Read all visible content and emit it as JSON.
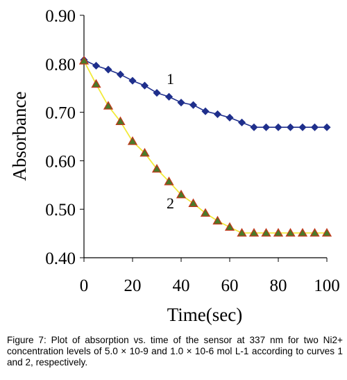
{
  "chart_data": {
    "type": "line",
    "title": "",
    "xlabel": "Time(sec)",
    "ylabel": "Absorbance",
    "xlim": [
      0,
      100
    ],
    "ylim": [
      0.4,
      0.9
    ],
    "x_ticks": [
      "0",
      "20",
      "40",
      "60",
      "80",
      "100"
    ],
    "y_ticks": [
      "0.90",
      "0.80",
      "0.70",
      "0.60",
      "0.50",
      "0.40"
    ],
    "grid": false,
    "legend": "none",
    "series": [
      {
        "label": "1",
        "marker": "diamond",
        "color": "#1f2f8c",
        "x": [
          0,
          5,
          10,
          15,
          20,
          25,
          30,
          35,
          40,
          45,
          50,
          55,
          60,
          65,
          70,
          75,
          80,
          85,
          90,
          95,
          100
        ],
        "y": [
          0.808,
          0.796,
          0.788,
          0.778,
          0.765,
          0.755,
          0.74,
          0.732,
          0.72,
          0.715,
          0.702,
          0.696,
          0.689,
          0.679,
          0.669,
          0.669,
          0.669,
          0.669,
          0.669,
          0.669,
          0.669
        ]
      },
      {
        "label": "2",
        "marker": "triangle",
        "color": "#f2ea3a",
        "marker_fill": "#4a7a2a",
        "marker_edge": "#c0391b",
        "x": [
          0,
          5,
          10,
          15,
          20,
          25,
          30,
          35,
          40,
          45,
          50,
          55,
          60,
          65,
          70,
          75,
          80,
          85,
          90,
          95,
          100
        ],
        "y": [
          0.806,
          0.758,
          0.713,
          0.681,
          0.64,
          0.616,
          0.583,
          0.557,
          0.53,
          0.512,
          0.492,
          0.476,
          0.463,
          0.451,
          0.451,
          0.451,
          0.451,
          0.451,
          0.451,
          0.451,
          0.451
        ]
      }
    ],
    "annotations": [
      {
        "text": "1",
        "x": 34,
        "y": 0.758
      },
      {
        "text": "2",
        "x": 34,
        "y": 0.502
      }
    ]
  },
  "caption": "Figure 7: Plot of absorption vs. time of the sensor at 337 nm for two Ni2+ concentration levels of 5.0 × 10-9 and 1.0 × 10-6 mol L-1 according to curves 1 and 2, respectively."
}
